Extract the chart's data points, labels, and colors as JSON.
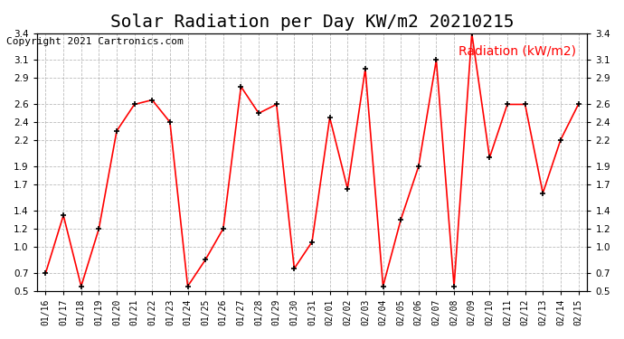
{
  "title": "Solar Radiation per Day KW/m2 20210215",
  "copyright": "Copyright 2021 Cartronics.com",
  "legend_label": "Radiation (kW/m2)",
  "dates": [
    "01/16",
    "01/17",
    "01/18",
    "01/19",
    "01/20",
    "01/21",
    "01/22",
    "01/23",
    "01/24",
    "01/25",
    "01/26",
    "01/27",
    "01/28",
    "01/29",
    "01/30",
    "01/31",
    "02/01",
    "02/02",
    "02/03",
    "02/04",
    "02/05",
    "02/06",
    "02/07",
    "02/08",
    "02/09",
    "02/10",
    "02/11",
    "02/12",
    "02/13",
    "02/14",
    "02/15"
  ],
  "values": [
    0.7,
    1.35,
    0.55,
    1.2,
    2.3,
    2.6,
    2.65,
    2.4,
    0.55,
    0.85,
    1.2,
    2.8,
    2.5,
    2.6,
    0.75,
    1.05,
    2.45,
    1.65,
    3.0,
    0.55,
    1.3,
    1.9,
    3.1,
    0.55,
    3.4,
    2.0,
    2.6,
    2.6,
    1.6,
    2.2,
    2.6
  ],
  "ylim": [
    0.5,
    3.4
  ],
  "yticks": [
    0.5,
    0.7,
    1.0,
    1.2,
    1.4,
    1.7,
    1.9,
    2.2,
    2.4,
    2.6,
    2.9,
    3.1,
    3.4
  ],
  "line_color": "red",
  "marker_color": "black",
  "title_fontsize": 14,
  "copyright_fontsize": 8,
  "legend_fontsize": 10,
  "bg_color": "#ffffff",
  "grid_color": "#aaaaaa"
}
